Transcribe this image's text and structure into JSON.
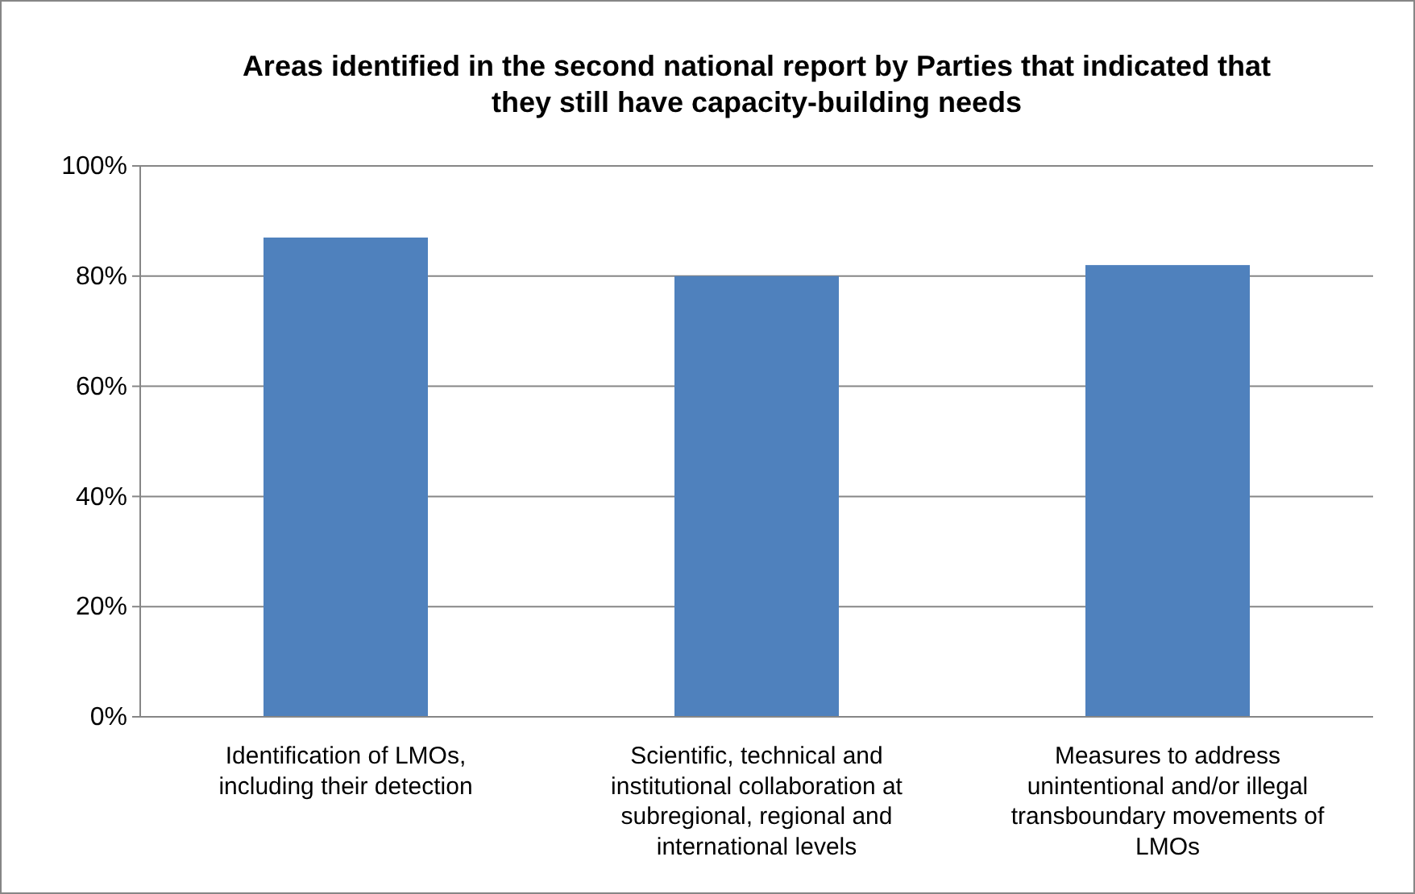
{
  "chart_data": {
    "type": "bar",
    "title": "Areas identified in the second national report by Parties that indicated that they still have capacity-building needs",
    "categories": [
      "Identification of LMOs, including their detection",
      "Scientific, technical and institutional collaboration at subregional, regional and international levels",
      "Measures to address unintentional and/or illegal transboundary movements of LMOs"
    ],
    "values": [
      87,
      80,
      82
    ],
    "color": "#4f81bd",
    "ylim": [
      0,
      100
    ],
    "yticks": [
      {
        "value": 0,
        "label": "0%"
      },
      {
        "value": 20,
        "label": "20%"
      },
      {
        "value": 40,
        "label": "40%"
      },
      {
        "value": 60,
        "label": "60%"
      },
      {
        "value": 80,
        "label": "80%"
      },
      {
        "value": 100,
        "label": "100%"
      }
    ],
    "grid": "y"
  }
}
